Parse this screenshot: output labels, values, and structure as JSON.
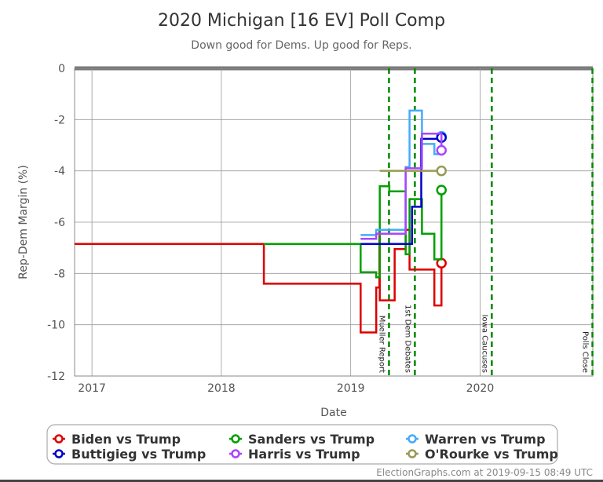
{
  "chart_data": {
    "type": "line",
    "title": "2020 Michigan [16 EV] Poll Comp",
    "subtitle": "Down good for Dems. Up good for Reps.",
    "xlabel": "Date",
    "ylabel": "Rep-Dem Margin (%)",
    "xlim": [
      "2016-11-13",
      "2020-11-14"
    ],
    "ylim": [
      -12,
      0
    ],
    "x_ticks": [
      {
        "date": "2017-01-01",
        "label": "2017"
      },
      {
        "date": "2018-01-01",
        "label": "2018"
      },
      {
        "date": "2019-01-01",
        "label": "2019"
      },
      {
        "date": "2020-01-01",
        "label": "2020"
      }
    ],
    "y_ticks": [
      0,
      -2,
      -4,
      -6,
      -8,
      -10,
      -12
    ],
    "grid": true,
    "line_style": "step",
    "bands": [
      {
        "from": -10,
        "to": -5,
        "color": "#ccccff"
      },
      {
        "from": -12,
        "to": -10,
        "color": "#9999ff"
      }
    ],
    "events": [
      {
        "date": "2019-04-19",
        "label": "Mueller Report"
      },
      {
        "date": "2019-07-01",
        "label": "1st Dem Debates"
      },
      {
        "date": "2020-02-03",
        "label": "Iowa Caucuses"
      },
      {
        "date": "2020-11-13",
        "label": "Polls Close"
      }
    ],
    "legend_position": "bottom",
    "series": [
      {
        "name": "Biden vs Trump",
        "color": "#dd0000",
        "points": [
          [
            "2016-11-13",
            -6.85
          ],
          [
            "2018-05-01",
            -8.4
          ],
          [
            "2019-01-29",
            -10.3
          ],
          [
            "2019-03-14",
            -8.55
          ],
          [
            "2019-03-23",
            -6.3
          ],
          [
            "2019-03-24",
            -9.05
          ],
          [
            "2019-05-05",
            -7.05
          ],
          [
            "2019-06-05",
            -6.3
          ],
          [
            "2019-06-16",
            -7.85
          ],
          [
            "2019-08-25",
            -9.25
          ],
          [
            "2019-09-14",
            -7.6
          ]
        ]
      },
      {
        "name": "Sanders vs Trump",
        "color": "#00a000",
        "points": [
          [
            "2018-05-01",
            -6.85
          ],
          [
            "2019-01-29",
            -7.95
          ],
          [
            "2019-03-14",
            -8.15
          ],
          [
            "2019-03-24",
            -4.6
          ],
          [
            "2019-04-20",
            -4.8
          ],
          [
            "2019-06-05",
            -7.25
          ],
          [
            "2019-06-16",
            -5.1
          ],
          [
            "2019-07-21",
            -6.45
          ],
          [
            "2019-08-25",
            -7.45
          ],
          [
            "2019-09-14",
            -4.75
          ]
        ]
      },
      {
        "name": "Warren vs Trump",
        "color": "#44aaff",
        "points": [
          [
            "2019-01-29",
            -6.5
          ],
          [
            "2019-03-14",
            -6.3
          ],
          [
            "2019-06-05",
            -3.85
          ],
          [
            "2019-06-16",
            -1.65
          ],
          [
            "2019-07-21",
            -2.95
          ],
          [
            "2019-08-25",
            -3.35
          ],
          [
            "2019-09-14",
            -2.65
          ]
        ]
      },
      {
        "name": "Buttigieg vs Trump",
        "color": "#0000cc",
        "points": [
          [
            "2019-01-29",
            -6.85
          ],
          [
            "2019-06-23",
            -5.4
          ],
          [
            "2019-07-19",
            -2.75
          ],
          [
            "2019-09-14",
            -2.7
          ]
        ]
      },
      {
        "name": "Harris vs Trump",
        "color": "#aa44ff",
        "points": [
          [
            "2019-01-29",
            -6.65
          ],
          [
            "2019-03-14",
            -6.45
          ],
          [
            "2019-06-05",
            -3.9
          ],
          [
            "2019-07-21",
            -2.55
          ],
          [
            "2019-09-14",
            -3.2
          ]
        ]
      },
      {
        "name": "O'Rourke vs Trump",
        "color": "#999955",
        "points": [
          [
            "2019-03-24",
            -4.0
          ],
          [
            "2019-09-14",
            -4.0
          ]
        ]
      }
    ]
  },
  "legend_order": [
    0,
    1,
    2,
    3,
    4,
    5
  ],
  "footer": "ElectionGraphs.com at 2019-09-15 08:49 UTC"
}
